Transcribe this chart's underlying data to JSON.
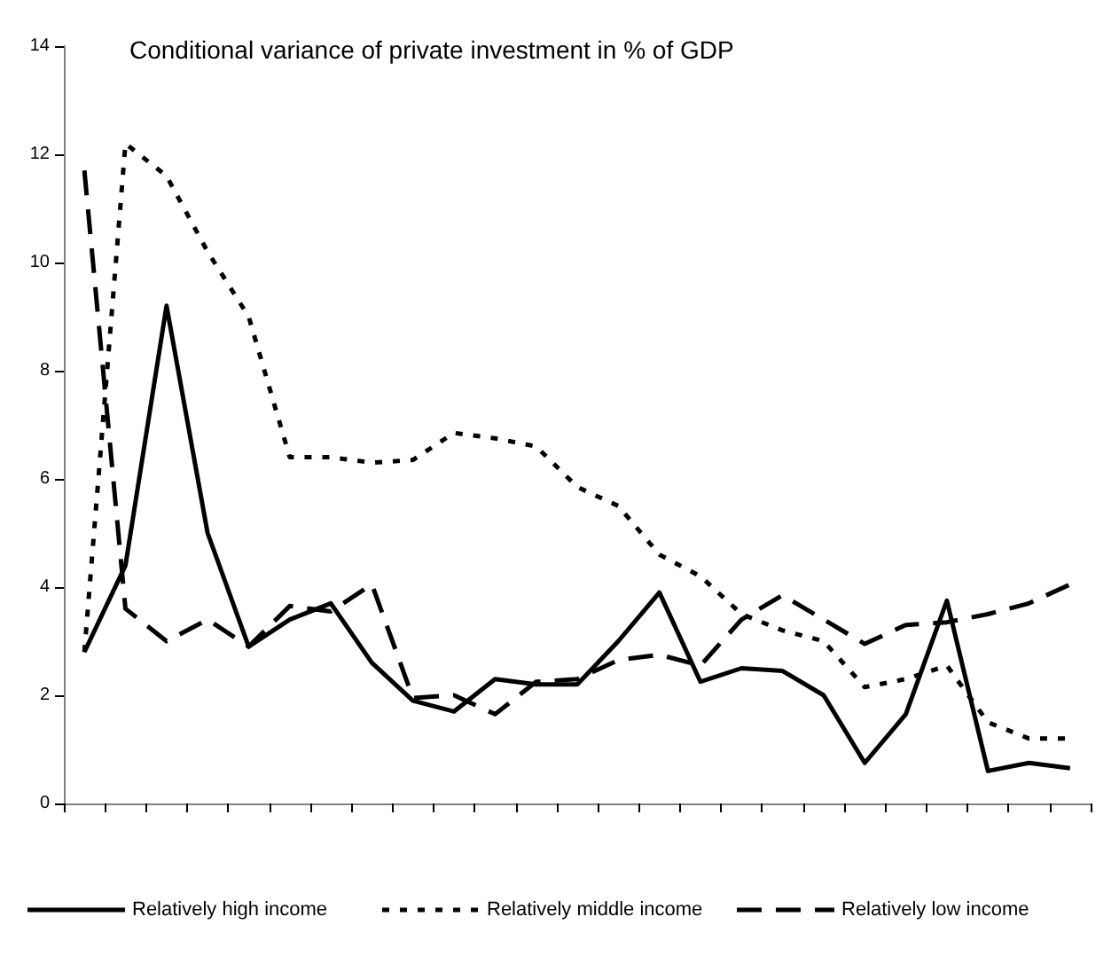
{
  "chart_data": {
    "type": "line",
    "title": "Conditional variance of private investment in % of GDP",
    "categories": [
      null,
      null,
      null,
      null,
      null,
      null,
      null,
      null,
      null,
      null,
      null,
      null,
      null,
      null,
      null,
      null,
      null,
      null,
      null,
      null,
      null,
      null,
      null,
      null,
      null
    ],
    "series": [
      {
        "name": "Relatively high income",
        "color": "#000000",
        "line_style": "solid",
        "values": [
          2.8,
          4.4,
          9.2,
          5.0,
          2.9,
          3.4,
          3.7,
          2.6,
          1.9,
          1.7,
          2.3,
          2.2,
          2.2,
          3.0,
          3.9,
          2.25,
          2.5,
          2.45,
          2.0,
          0.75,
          1.65,
          3.75,
          0.6,
          0.75,
          0.65
        ]
      },
      {
        "name": "Relatively middle income",
        "color": "#000000",
        "line_style": "dotted",
        "values": [
          2.8,
          12.2,
          11.6,
          10.2,
          9.0,
          6.4,
          6.4,
          6.3,
          6.35,
          6.85,
          6.75,
          6.6,
          5.85,
          5.5,
          4.6,
          4.2,
          3.5,
          3.2,
          3.0,
          2.15,
          2.3,
          2.55,
          1.5,
          1.2,
          1.2
        ]
      },
      {
        "name": "Relatively low income",
        "color": "#000000",
        "line_style": "dashed",
        "values": [
          11.7,
          3.6,
          3.0,
          3.4,
          2.9,
          3.65,
          3.55,
          4.05,
          1.95,
          2.0,
          1.65,
          2.25,
          2.3,
          2.65,
          2.75,
          2.55,
          3.4,
          3.85,
          3.4,
          2.95,
          3.3,
          3.35,
          3.5,
          3.7,
          4.05
        ]
      }
    ],
    "ylim": [
      0,
      14
    ],
    "yticks": [
      0,
      2,
      4,
      6,
      8,
      10,
      12,
      14
    ],
    "grid": false,
    "legend": "bottom",
    "marker": "none"
  }
}
